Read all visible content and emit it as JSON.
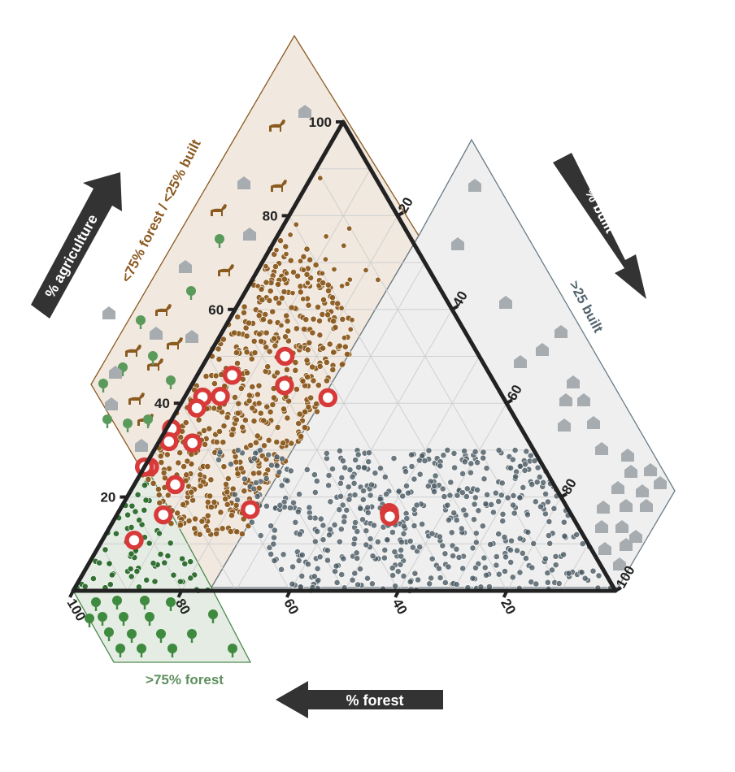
{
  "chart_data": {
    "type": "scatter",
    "subtype": "ternary",
    "axes": {
      "agriculture": {
        "label": "% agriculture",
        "ticks": [
          "20",
          "40",
          "60",
          "80",
          "100"
        ]
      },
      "built": {
        "label": "% built",
        "ticks": [
          "20",
          "40",
          "60",
          "80",
          "100"
        ]
      },
      "forest": {
        "label": "% forest",
        "ticks": [
          "20",
          "40",
          "60",
          "80",
          "100"
        ]
      }
    },
    "grid": true,
    "zones": [
      {
        "label": ">75% forest",
        "color": "#4e8a4e"
      },
      {
        "label": "<75% forest / <25% built",
        "color": "#8a5a20"
      },
      {
        "label": ">25 built",
        "color": "#51636e"
      }
    ],
    "colors": {
      "forest": "#2b6a2b",
      "agriculture": "#8a5a1e",
      "built": "#4a5a63",
      "highlight_ring": "#d83a3a",
      "forest_zone_fill": "#e4ece4",
      "agri_zone_fill": "#f1e8df",
      "built_zone_fill": "#efefef",
      "arrow": "#333333"
    },
    "icons": [
      "horse-icon",
      "tree-icon",
      "house-icon"
    ],
    "highlighted_points": [
      {
        "forest": 48,
        "agri": 67,
        "built": 19
      },
      {
        "forest": 59,
        "agri": 57,
        "built": 8
      },
      {
        "forest": 50,
        "agri": 56,
        "built": 22
      },
      {
        "forest": 44,
        "agri": 56,
        "built": 36
      },
      {
        "forest": 64,
        "agri": 51,
        "built": 8
      },
      {
        "forest": 67,
        "agri": 50,
        "built": 4
      },
      {
        "forest": 68,
        "agri": 46,
        "built": 4
      },
      {
        "forest": 69,
        "agri": 37,
        "built": 1
      },
      {
        "forest": 73,
        "agri": 35,
        "built": 2
      },
      {
        "forest": 69,
        "agri": 35,
        "built": 7
      },
      {
        "forest": 77,
        "agri": 28,
        "built": 1
      },
      {
        "forest": 78,
        "agri": 28,
        "built": 0
      },
      {
        "forest": 74,
        "agri": 24,
        "built": 8
      },
      {
        "forest": 79,
        "agri": 17,
        "built": 9
      },
      {
        "forest": 61,
        "agri": 18,
        "built": 25
      },
      {
        "forest": 85,
        "agri": 11,
        "built": 6
      },
      {
        "forest": 34,
        "agri": 17,
        "built": 51
      },
      {
        "forest": 34,
        "agri": 16,
        "built": 51
      }
    ]
  }
}
